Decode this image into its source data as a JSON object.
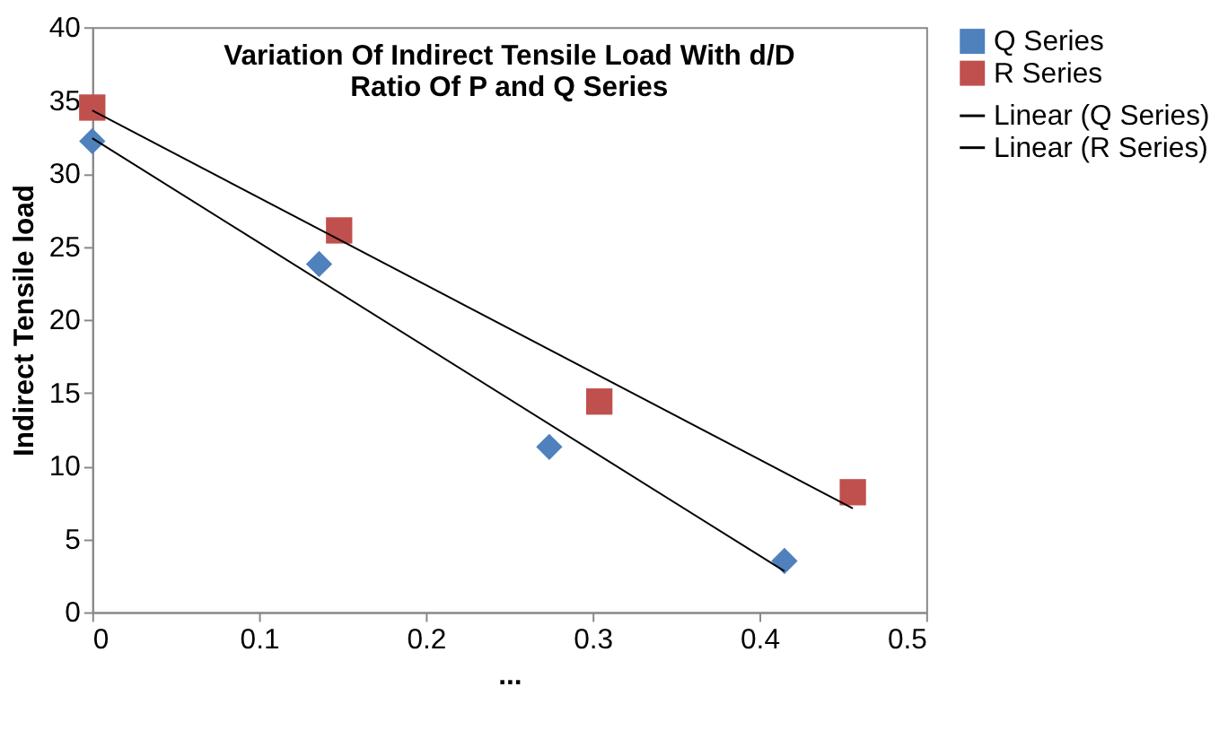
{
  "chart_data": {
    "type": "scatter",
    "title": "Variation Of Indirect Tensile Load With d/D Ratio Of P and Q Series",
    "xlabel": "...",
    "ylabel": "Indirect Tensile load",
    "series": [
      {
        "name": "Q Series",
        "type": "scatter",
        "marker": "diamond",
        "color": "#4f81bd",
        "x": [
          0,
          0.136,
          0.274,
          0.415
        ],
        "values": [
          32.2,
          23.8,
          11.3,
          3.5
        ]
      },
      {
        "name": "R Series",
        "type": "scatter",
        "marker": "square",
        "color": "#c0504d",
        "x": [
          0,
          0.148,
          0.304,
          0.456
        ],
        "values": [
          34.5,
          26.1,
          14.4,
          8.2
        ]
      },
      {
        "name": "Linear (Q Series)",
        "type": "line",
        "color": "#000000",
        "x": [
          0,
          0.415
        ],
        "values": [
          32.4,
          2.8
        ]
      },
      {
        "name": "Linear (R Series)",
        "type": "line",
        "color": "#000000",
        "x": [
          0,
          0.456
        ],
        "values": [
          34.3,
          7.1
        ]
      }
    ],
    "xlim": [
      0,
      0.5
    ],
    "xticks": [
      0,
      0.1,
      0.2,
      0.3,
      0.4,
      0.5
    ],
    "ylim": [
      0,
      40
    ],
    "yticks": [
      0,
      5,
      10,
      15,
      20,
      25,
      30,
      35,
      40
    ],
    "grid": false,
    "legend": "right"
  }
}
